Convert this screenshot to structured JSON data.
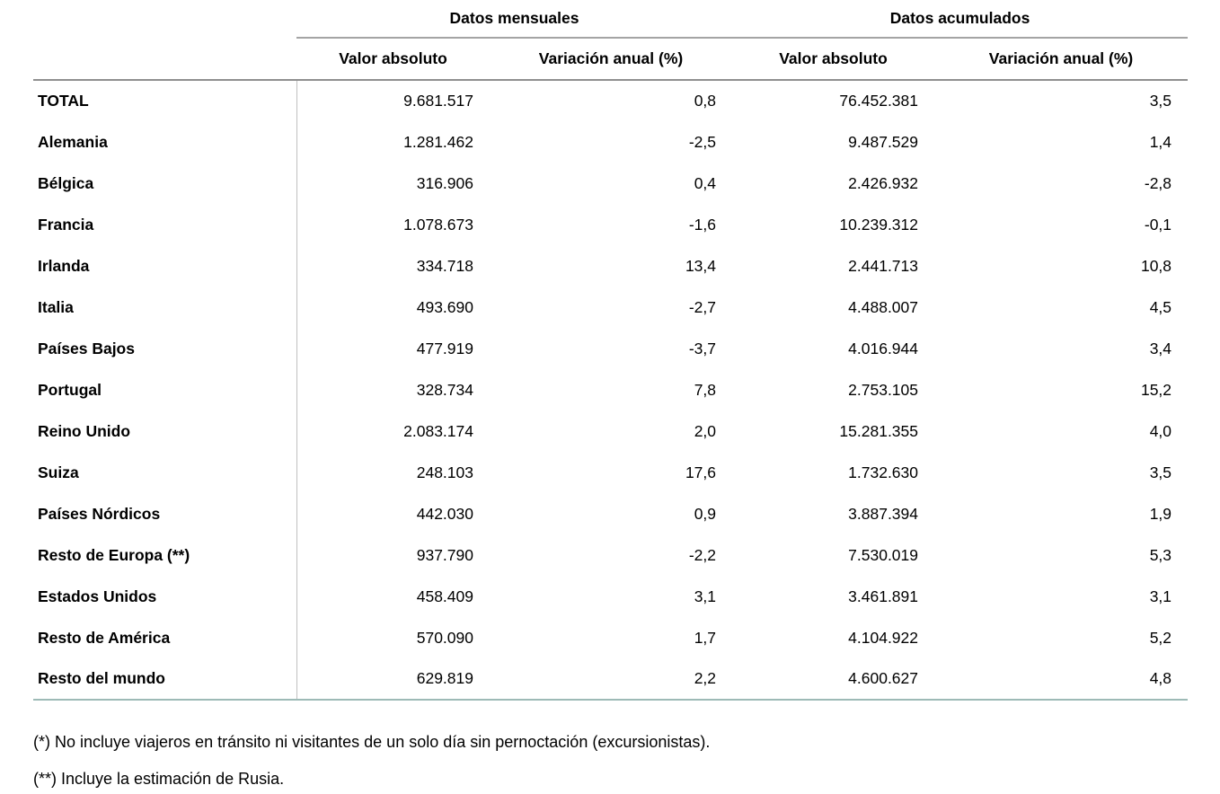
{
  "table": {
    "group_headers": [
      {
        "label": "Datos mensuales"
      },
      {
        "label": "Datos acumulados"
      }
    ],
    "column_headers": [
      "Valor absoluto",
      "Variación anual (%)",
      "Valor absoluto",
      "Variación anual (%)"
    ],
    "rows": [
      {
        "label": "TOTAL",
        "values": [
          "9.681.517",
          "0,8",
          "76.452.381",
          "3,5"
        ]
      },
      {
        "label": "Alemania",
        "values": [
          "1.281.462",
          "-2,5",
          "9.487.529",
          "1,4"
        ]
      },
      {
        "label": "Bélgica",
        "values": [
          "316.906",
          "0,4",
          "2.426.932",
          "-2,8"
        ]
      },
      {
        "label": "Francia",
        "values": [
          "1.078.673",
          "-1,6",
          "10.239.312",
          "-0,1"
        ]
      },
      {
        "label": "Irlanda",
        "values": [
          "334.718",
          "13,4",
          "2.441.713",
          "10,8"
        ]
      },
      {
        "label": "Italia",
        "values": [
          "493.690",
          "-2,7",
          "4.488.007",
          "4,5"
        ]
      },
      {
        "label": "Países Bajos",
        "values": [
          "477.919",
          "-3,7",
          "4.016.944",
          "3,4"
        ]
      },
      {
        "label": "Portugal",
        "values": [
          "328.734",
          "7,8",
          "2.753.105",
          "15,2"
        ]
      },
      {
        "label": "Reino Unido",
        "values": [
          "2.083.174",
          "2,0",
          "15.281.355",
          "4,0"
        ]
      },
      {
        "label": "Suiza",
        "values": [
          "248.103",
          "17,6",
          "1.732.630",
          "3,5"
        ]
      },
      {
        "label": "Países Nórdicos",
        "values": [
          "442.030",
          "0,9",
          "3.887.394",
          "1,9"
        ]
      },
      {
        "label": "Resto de Europa (**)",
        "values": [
          "937.790",
          "-2,2",
          "7.530.019",
          "5,3"
        ]
      },
      {
        "label": "Estados Unidos",
        "values": [
          "458.409",
          "3,1",
          "3.461.891",
          "3,1"
        ]
      },
      {
        "label": "Resto de América",
        "values": [
          "570.090",
          "1,7",
          "4.104.922",
          "5,2"
        ]
      },
      {
        "label": "Resto del mundo",
        "values": [
          "629.819",
          "2,2",
          "4.600.627",
          "4,8"
        ]
      }
    ],
    "footnotes": [
      "(*) No incluye viajeros en tránsito ni visitantes de un solo día sin pernoctación (excursionistas).",
      "(**) Incluye la estimación de Rusia."
    ],
    "colors": {
      "background": "#ffffff",
      "text": "#000000",
      "group_header_underline": "#a4a4a4",
      "subheader_underline": "#8f8f8f",
      "label_column_divider": "#c0c0c0",
      "table_bottom_line": "#9dbab6"
    }
  }
}
